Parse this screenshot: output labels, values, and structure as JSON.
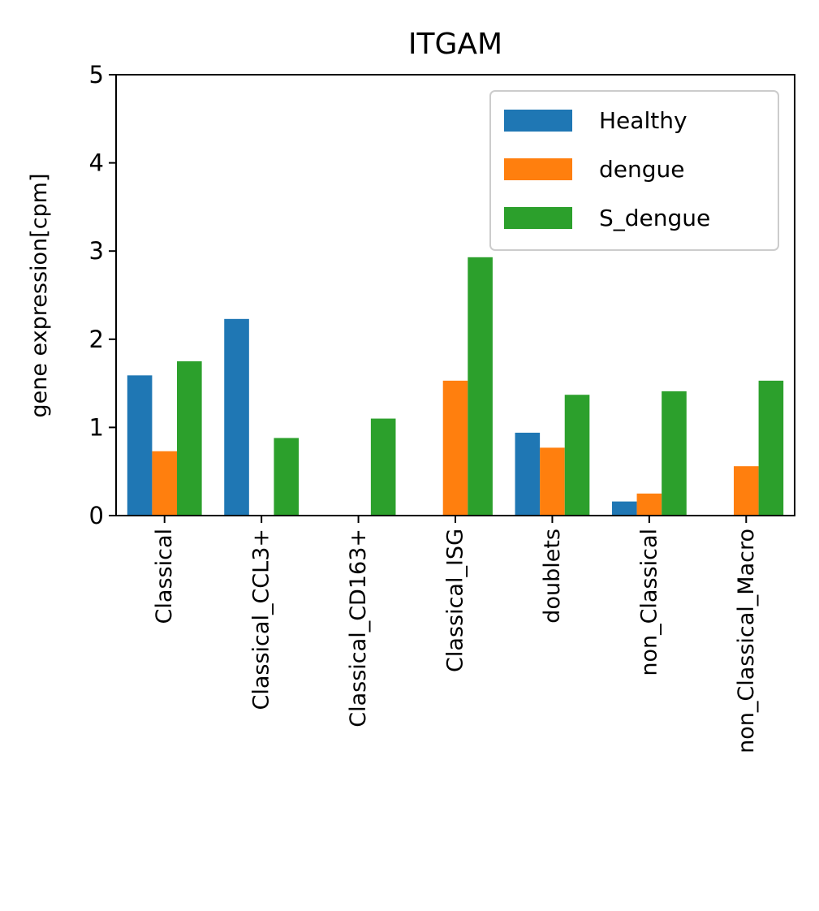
{
  "chart_data": {
    "type": "bar",
    "title": "ITGAM",
    "xlabel": "",
    "ylabel": "gene expression[cpm]",
    "ylim": [
      0,
      5
    ],
    "yticks": [
      0,
      1,
      2,
      3,
      4,
      5
    ],
    "categories": [
      "Classical",
      "Classical_CCL3+",
      "Classical_CD163+",
      "Classical_ISG",
      "doublets",
      "non_Classical",
      "non_Classical_Macro"
    ],
    "series": [
      {
        "name": "Healthy",
        "color": "#1f77b4",
        "values": [
          1.59,
          2.23,
          0,
          0,
          0.94,
          0.16,
          0
        ]
      },
      {
        "name": "dengue",
        "color": "#ff7f0e",
        "values": [
          0.73,
          0,
          0,
          1.53,
          0.77,
          0.25,
          0.56
        ]
      },
      {
        "name": "S_dengue",
        "color": "#2ca02c",
        "values": [
          1.75,
          0.88,
          1.1,
          2.93,
          1.37,
          1.41,
          1.53
        ]
      }
    ],
    "legend_position": "top-right",
    "grid": false
  }
}
